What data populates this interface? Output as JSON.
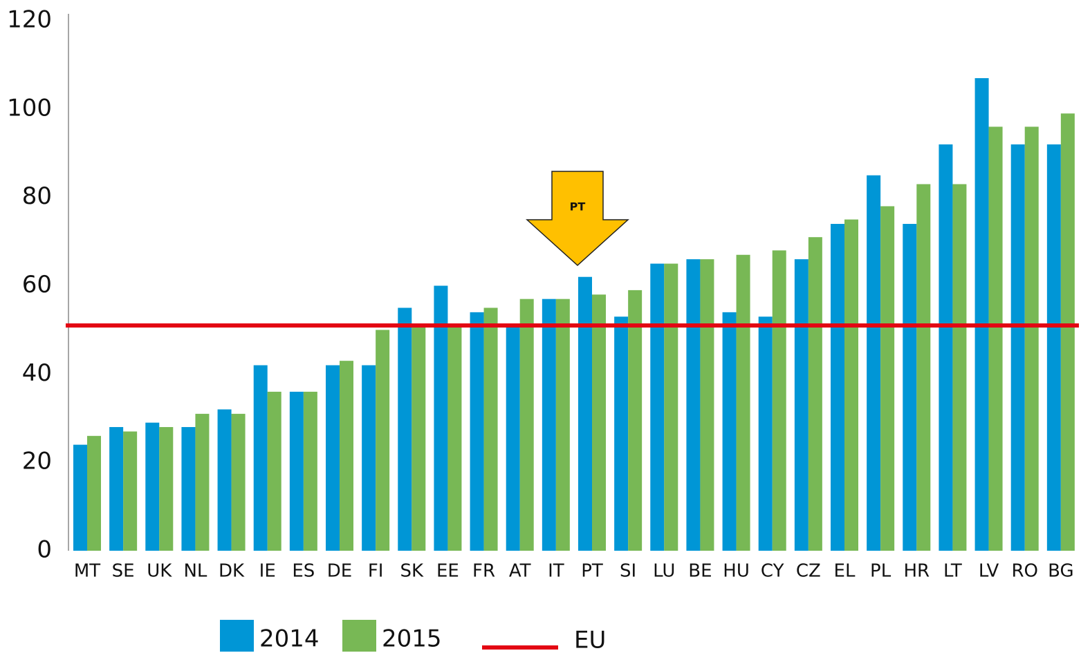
{
  "chart_data": {
    "type": "bar",
    "categories": [
      "MT",
      "SE",
      "UK",
      "NL",
      "DK",
      "IE",
      "ES",
      "DE",
      "FI",
      "SK",
      "EE",
      "FR",
      "AT",
      "IT",
      "PT",
      "SI",
      "LU",
      "BE",
      "HU",
      "CY",
      "CZ",
      "EL",
      "PL",
      "HR",
      "LT",
      "LV",
      "RO",
      "BG"
    ],
    "series": [
      {
        "name": "2014",
        "color": "#0096d6",
        "values": [
          24,
          28,
          29,
          28,
          32,
          42,
          36,
          42,
          42,
          55,
          60,
          54,
          51,
          57,
          62,
          53,
          65,
          66,
          54,
          53,
          66,
          74,
          85,
          74,
          92,
          107,
          92,
          92
        ]
      },
      {
        "name": "2015",
        "color": "#78b855",
        "values": [
          26,
          27,
          28,
          31,
          31,
          36,
          36,
          43,
          50,
          51,
          51,
          55,
          57,
          57,
          58,
          59,
          65,
          66,
          67,
          68,
          71,
          75,
          78,
          83,
          83,
          96,
          96,
          99
        ]
      }
    ],
    "reference_line": {
      "name": "EU",
      "value": 51,
      "color": "#e30613"
    },
    "annotation": {
      "text": "PT",
      "color": "#ffc000"
    },
    "ylim": [
      0,
      120
    ],
    "yticks": [
      0,
      20,
      40,
      60,
      80,
      100,
      120
    ],
    "grid": false
  }
}
